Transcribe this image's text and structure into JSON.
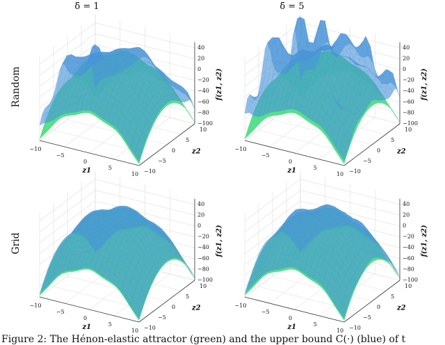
{
  "figure": {
    "column_titles": [
      "δ̄ = 1",
      "δ̄ = 5"
    ],
    "row_labels": [
      "Random",
      "Grid"
    ],
    "x_label": "z1",
    "y_label": "z2",
    "z_label": "f(z1, z2)",
    "caption": "Figure 2: The Hénon-elastic attractor (green) and the upper bound C(·) (blue) of t"
  },
  "chart_data": [
    {
      "type": "surface",
      "row": "Random",
      "column": "δ̄ = 1",
      "xlim": [
        -10,
        10
      ],
      "ylim": [
        -10,
        10
      ],
      "zlim": [
        -100,
        50
      ],
      "x_ticks": [
        "−10",
        "−5",
        "0",
        "5",
        "10"
      ],
      "y_ticks": [
        "−10",
        "−5",
        "0",
        "5",
        "10"
      ],
      "z_ticks": [
        "−100",
        "−80",
        "−60",
        "−40",
        "−20",
        "0",
        "20",
        "40"
      ],
      "surfaces": [
        {
          "color": "#45dc7e",
          "role": "attractor"
        },
        {
          "color": "#4b95d8",
          "role": "upper bound",
          "spikiness": 1
        }
      ]
    },
    {
      "type": "surface",
      "row": "Random",
      "column": "δ̄ = 5",
      "xlim": [
        -10,
        10
      ],
      "ylim": [
        -10,
        10
      ],
      "zlim": [
        -100,
        50
      ],
      "x_ticks": [
        "−10",
        "−5",
        "0",
        "5",
        "10"
      ],
      "y_ticks": [
        "−10",
        "−5",
        "0",
        "5",
        "10"
      ],
      "z_ticks": [
        "−100",
        "−80",
        "−60",
        "−40",
        "−20",
        "0",
        "20",
        "40"
      ],
      "surfaces": [
        {
          "color": "#45dc7e",
          "role": "attractor"
        },
        {
          "color": "#4b95d8",
          "role": "upper bound",
          "spikiness": 2
        }
      ]
    },
    {
      "type": "surface",
      "row": "Grid",
      "column": "δ̄ = 1",
      "xlim": [
        -10,
        10
      ],
      "ylim": [
        -10,
        10
      ],
      "zlim": [
        -100,
        50
      ],
      "x_ticks": [
        "−10",
        "−5",
        "0",
        "5",
        "10"
      ],
      "y_ticks": [
        "−10",
        "−5",
        "0",
        "5",
        "10"
      ],
      "z_ticks": [
        "−100",
        "−80",
        "−60",
        "−40",
        "−20",
        "0",
        "20",
        "40"
      ],
      "surfaces": [
        {
          "color": "#45dc7e",
          "role": "attractor"
        },
        {
          "color": "#4b95d8",
          "role": "upper bound",
          "spikiness": 0
        }
      ]
    },
    {
      "type": "surface",
      "row": "Grid",
      "column": "δ̄ = 5",
      "xlim": [
        -10,
        10
      ],
      "ylim": [
        -10,
        10
      ],
      "zlim": [
        -100,
        50
      ],
      "x_ticks": [
        "−10",
        "−5",
        "0",
        "5",
        "10"
      ],
      "y_ticks": [
        "−10",
        "−5",
        "0",
        "5",
        "10"
      ],
      "z_ticks": [
        "−100",
        "−80",
        "−60",
        "−40",
        "−20",
        "0",
        "20",
        "40"
      ],
      "surfaces": [
        {
          "color": "#45dc7e",
          "role": "attractor"
        },
        {
          "color": "#4b95d8",
          "role": "upper bound",
          "spikiness": 0.5
        }
      ]
    }
  ]
}
